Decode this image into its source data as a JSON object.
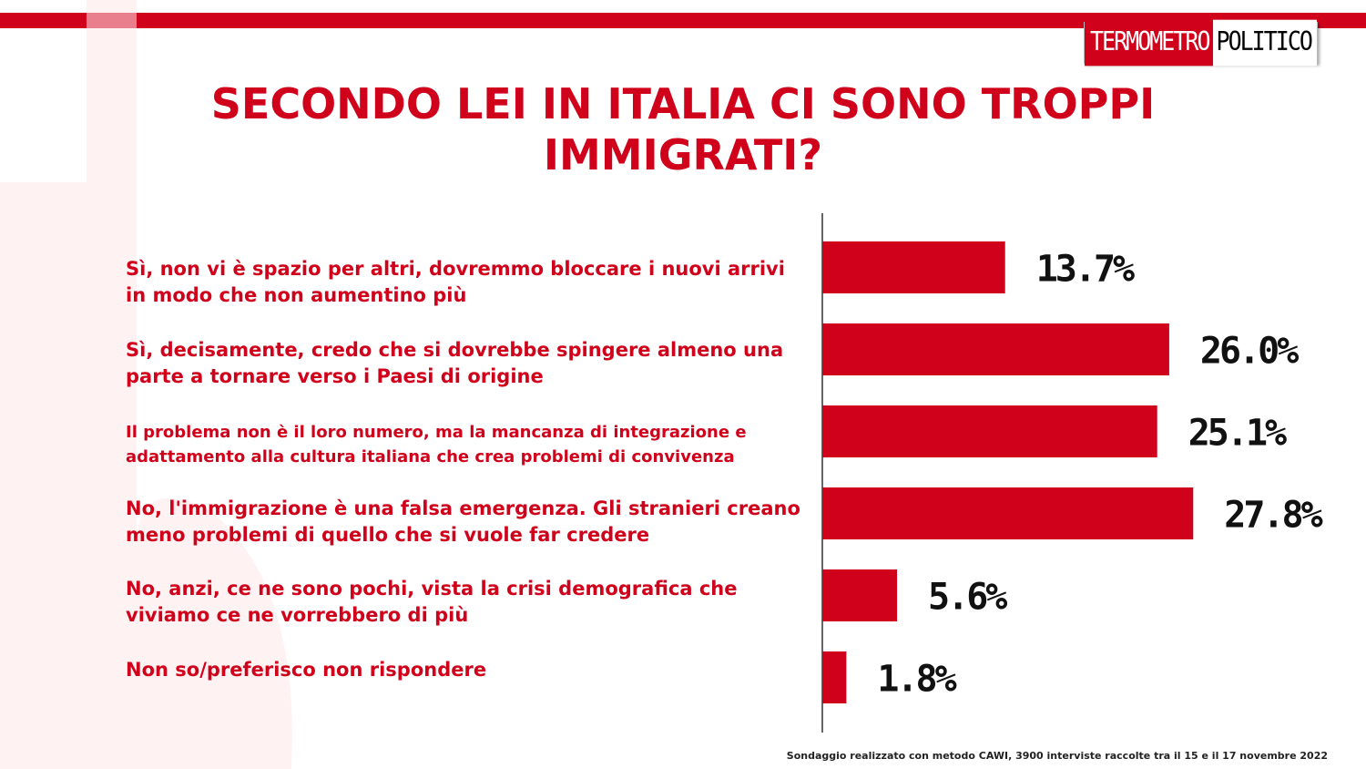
{
  "logo": {
    "part1": "TERMOMETRO",
    "part2": "POLITICO"
  },
  "colors": {
    "accent": "#d0021b",
    "watermark": "#fde8ea"
  },
  "chart_data": {
    "type": "bar",
    "orientation": "horizontal",
    "title": "SECONDO LEI IN ITALIA CI SONO TROPPI IMMIGRATI?",
    "categories": [
      "Sì, non vi è spazio per altri, dovremmo bloccare i nuovi arrivi in modo che non aumentino più",
      "Sì, decisamente, credo che si dovrebbe spingere almeno una parte a tornare verso i Paesi di origine",
      "Il problema non è il loro numero, ma la mancanza di integrazione e adattamento alla cultura italiana che crea problemi di convivenza",
      "No, l'immigrazione è una falsa emergenza. Gli stranieri creano meno problemi di quello che si vuole far credere",
      "No, anzi, ce ne sono pochi, vista la crisi demografica che viviamo ce ne vorrebbero di più",
      "Non so/preferisco non rispondere"
    ],
    "values": [
      13.7,
      26.0,
      25.1,
      27.8,
      5.6,
      1.8
    ],
    "value_labels": [
      "13.7%",
      "26.0%",
      "25.1%",
      "27.8%",
      "5.6%",
      "1.8%"
    ],
    "color": "#d0021b",
    "legend": "none",
    "grid": false
  },
  "footnote": "Sondaggio realizzato con metodo CAWI, 3900 interviste raccolte tra il 15 e il 17 novembre 2022"
}
